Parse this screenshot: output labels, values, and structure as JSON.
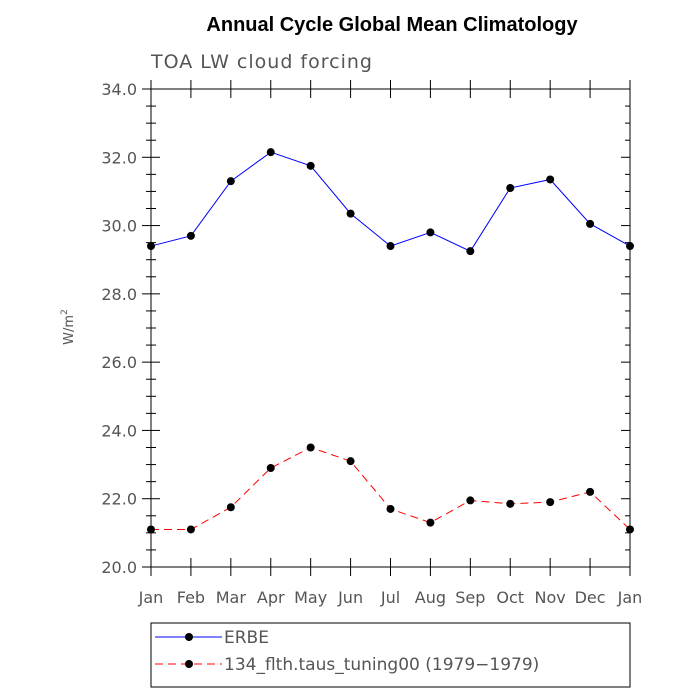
{
  "chart_data": {
    "type": "line",
    "title": "Annual Cycle Global Mean Climatology",
    "subtitle": "TOA LW cloud forcing",
    "ylabel": "W/m",
    "ylabel_sup": "2",
    "xlabel": "",
    "categories": [
      "Jan",
      "Feb",
      "Mar",
      "Apr",
      "May",
      "Jun",
      "Jul",
      "Aug",
      "Sep",
      "Oct",
      "Nov",
      "Dec",
      "Jan"
    ],
    "ylim": [
      20.0,
      34.0
    ],
    "yticks": [
      "20.0",
      "22.0",
      "24.0",
      "26.0",
      "28.0",
      "30.0",
      "32.0",
      "34.0"
    ],
    "series": [
      {
        "name": "ERBE",
        "color": "#0000ff",
        "dash": "solid",
        "values": [
          29.4,
          29.7,
          31.3,
          32.15,
          31.75,
          30.35,
          29.4,
          29.8,
          29.25,
          31.1,
          31.35,
          30.05,
          29.4
        ]
      },
      {
        "name": "134_flth.taus_tuning00 (1979−1979)",
        "color": "#ff0000",
        "dash": "dashed",
        "values": [
          21.1,
          21.1,
          21.75,
          22.9,
          23.5,
          23.1,
          21.7,
          21.3,
          21.95,
          21.85,
          21.9,
          22.2,
          21.1
        ]
      }
    ],
    "legend_position": "bottom"
  }
}
